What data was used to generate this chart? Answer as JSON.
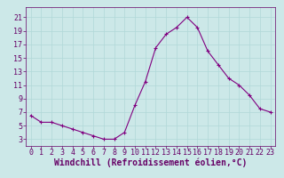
{
  "x": [
    0,
    1,
    2,
    3,
    4,
    5,
    6,
    7,
    8,
    9,
    10,
    11,
    12,
    13,
    14,
    15,
    16,
    17,
    18,
    19,
    20,
    21,
    22,
    23
  ],
  "y": [
    6.5,
    5.5,
    5.5,
    5.0,
    4.5,
    4.0,
    3.5,
    3.0,
    3.0,
    4.0,
    8.0,
    11.5,
    16.5,
    18.5,
    19.5,
    21.0,
    19.5,
    16.0,
    14.0,
    12.0,
    11.0,
    9.5,
    7.5,
    7.0
  ],
  "line_color": "#800080",
  "marker": "+",
  "bg_color": "#cce8e8",
  "grid_color": "#b0d8d8",
  "xlabel": "Windchill (Refroidissement éolien,°C)",
  "yticks": [
    3,
    5,
    7,
    9,
    11,
    13,
    15,
    17,
    19,
    21
  ],
  "xticks": [
    0,
    1,
    2,
    3,
    4,
    5,
    6,
    7,
    8,
    9,
    10,
    11,
    12,
    13,
    14,
    15,
    16,
    17,
    18,
    19,
    20,
    21,
    22,
    23
  ],
  "ylim": [
    2.0,
    22.5
  ],
  "xlim": [
    -0.5,
    23.5
  ],
  "axis_color": "#660066",
  "label_fontsize": 7,
  "tick_fontsize": 6
}
